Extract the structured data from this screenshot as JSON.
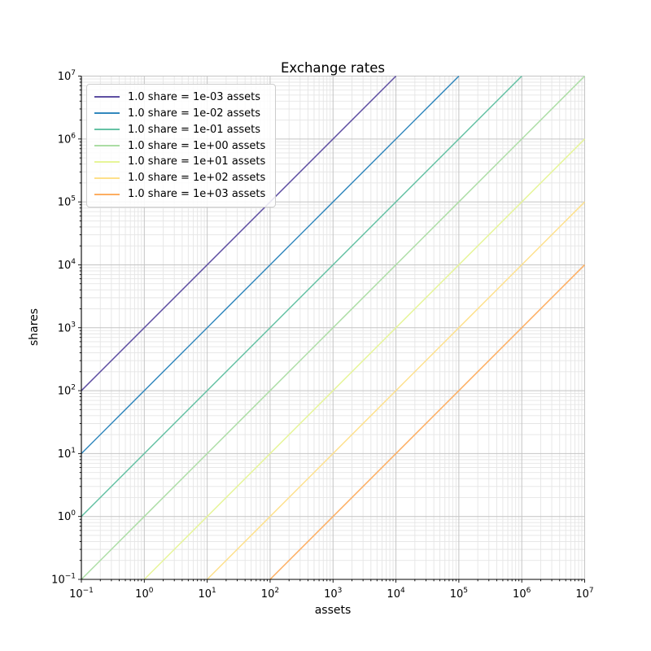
{
  "chart_data": {
    "type": "line",
    "title": "Exchange rates",
    "xlabel": "assets",
    "ylabel": "shares",
    "xscale": "log",
    "yscale": "log",
    "xlim": [
      0.1,
      10000000
    ],
    "ylim": [
      0.1,
      10000000
    ],
    "x_tick_labels": [
      "10^-1",
      "10^0",
      "10^1",
      "10^2",
      "10^3",
      "10^4",
      "10^5",
      "10^6",
      "10^7"
    ],
    "y_tick_labels": [
      "10^-1",
      "10^0",
      "10^1",
      "10^2",
      "10^3",
      "10^4",
      "10^5",
      "10^6",
      "10^7"
    ],
    "grid": "major+minor",
    "legend_position": "upper left",
    "series": [
      {
        "label": "1.0 share = 1e-03 assets",
        "color": "#5e4fa2",
        "points": [
          [
            0.1,
            100
          ],
          [
            10000,
            10000000
          ]
        ]
      },
      {
        "label": "1.0 share = 1e-02 assets",
        "color": "#3288bd",
        "points": [
          [
            0.1,
            10
          ],
          [
            100000,
            10000000
          ]
        ]
      },
      {
        "label": "1.0 share = 1e-01 assets",
        "color": "#66c2a5",
        "points": [
          [
            0.1,
            1
          ],
          [
            1000000,
            10000000
          ]
        ]
      },
      {
        "label": "1.0 share = 1e+00 assets",
        "color": "#abdda4",
        "points": [
          [
            0.1,
            0.1
          ],
          [
            10000000,
            10000000
          ]
        ]
      },
      {
        "label": "1.0 share = 1e+01 assets",
        "color": "#e6f598",
        "points": [
          [
            1,
            0.1
          ],
          [
            10000000,
            1000000
          ]
        ]
      },
      {
        "label": "1.0 share = 1e+02 assets",
        "color": "#fee08b",
        "points": [
          [
            10,
            0.1
          ],
          [
            10000000,
            100000
          ]
        ]
      },
      {
        "label": "1.0 share = 1e+03 assets",
        "color": "#fdae61",
        "points": [
          [
            100,
            0.1
          ],
          [
            10000000,
            10000
          ]
        ]
      }
    ],
    "colors": {
      "background": "#ffffff",
      "spine": "#000000",
      "major_grid": "#c4c4c4",
      "minor_grid": "#e5e5e5",
      "text": "#000000"
    }
  }
}
